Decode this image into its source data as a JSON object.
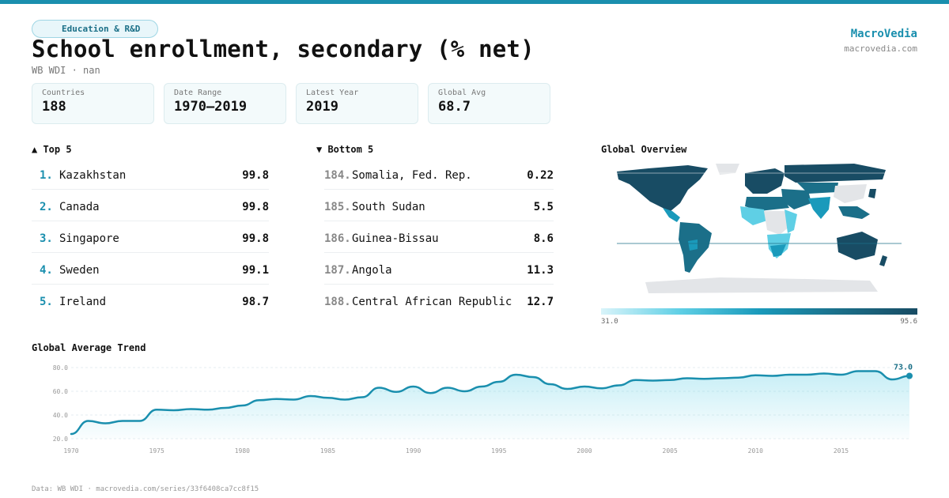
{
  "header": {
    "tag": "Education & R&D",
    "title": "School enrollment, secondary (% net)",
    "subtitle": "WB WDI · nan",
    "brand": "MacroVedia",
    "brand_url": "macrovedia.com"
  },
  "stats": [
    {
      "label": "Countries",
      "value": "188"
    },
    {
      "label": "Date Range",
      "value": "1970–2019"
    },
    {
      "label": "Latest Year",
      "value": "2019"
    },
    {
      "label": "Global Avg",
      "value": "68.7"
    }
  ],
  "top5": {
    "title": "▲ Top 5",
    "rows": [
      {
        "rank": "1.",
        "name": "Kazakhstan",
        "value": "99.8"
      },
      {
        "rank": "2.",
        "name": "Canada",
        "value": "99.8"
      },
      {
        "rank": "3.",
        "name": "Singapore",
        "value": "99.8"
      },
      {
        "rank": "4.",
        "name": "Sweden",
        "value": "99.1"
      },
      {
        "rank": "5.",
        "name": "Ireland",
        "value": "98.7"
      }
    ]
  },
  "bottom5": {
    "title": "▼ Bottom 5",
    "rows": [
      {
        "rank": "184.",
        "name": "Somalia, Fed. Rep.",
        "value": "0.22"
      },
      {
        "rank": "185.",
        "name": "South Sudan",
        "value": "5.5"
      },
      {
        "rank": "186.",
        "name": "Guinea-Bissau",
        "value": "8.6"
      },
      {
        "rank": "187.",
        "name": "Angola",
        "value": "11.3"
      },
      {
        "rank": "188.",
        "name": "Central African Republic",
        "value": "12.7"
      }
    ]
  },
  "map": {
    "title": "Global Overview",
    "legend_min": "31.0",
    "legend_max": "95.6",
    "colors": [
      "#d9f4fa",
      "#5fcfe5",
      "#1a9abb",
      "#1b6f89",
      "#184c64"
    ],
    "no_data_color": "#e3e5e8"
  },
  "trend": {
    "title": "Global Average Trend",
    "last_label": "73.0",
    "accent": "#1a8fae"
  },
  "chart_data": {
    "type": "area",
    "title": "Global Average Trend",
    "xlabel": "",
    "ylabel": "",
    "ylim": [
      20,
      80
    ],
    "xlim": [
      1970,
      2019
    ],
    "yticks": [
      "20.0",
      "40.0",
      "60.0",
      "80.0"
    ],
    "xticks": [
      "1970",
      "1975",
      "1980",
      "1985",
      "1990",
      "1995",
      "2000",
      "2005",
      "2010",
      "2015"
    ],
    "grid": true,
    "x": [
      1970,
      1971,
      1972,
      1973,
      1974,
      1975,
      1976,
      1977,
      1978,
      1979,
      1980,
      1981,
      1982,
      1983,
      1984,
      1985,
      1986,
      1987,
      1988,
      1989,
      1990,
      1991,
      1992,
      1993,
      1994,
      1995,
      1996,
      1997,
      1998,
      1999,
      2000,
      2001,
      2002,
      2003,
      2004,
      2005,
      2006,
      2007,
      2008,
      2009,
      2010,
      2011,
      2012,
      2013,
      2014,
      2015,
      2016,
      2017,
      2018,
      2019
    ],
    "series": [
      {
        "values": [
          24.0,
          35.0,
          33.0,
          35.0,
          35.0,
          44.5,
          44.0,
          45.0,
          44.5,
          46.0,
          48.0,
          52.5,
          53.5,
          53.0,
          56.0,
          54.5,
          53.0,
          55.0,
          63.0,
          59.5,
          64.0,
          58.5,
          63.0,
          60.0,
          64.0,
          68.0,
          74.0,
          72.0,
          66.0,
          62.0,
          64.0,
          62.5,
          65.0,
          69.5,
          69.0,
          69.5,
          71.0,
          70.5,
          71.0,
          71.5,
          73.5,
          73.0,
          74.0,
          74.0,
          75.0,
          74.0,
          77.0,
          77.0,
          70.0,
          73.0
        ]
      }
    ]
  },
  "footer": "Data: WB WDI · macrovedia.com/series/33f6408ca7cc8f15"
}
